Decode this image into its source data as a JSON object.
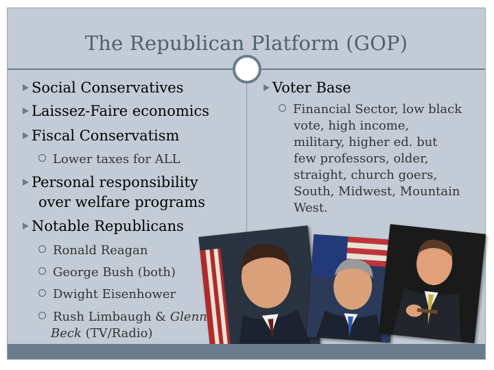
{
  "title": "The Republican Platform (GOP)",
  "left": {
    "social": "Social Conservatives",
    "laissez": "Laissez-Faire economics",
    "fiscal": "Fiscal Conservatism",
    "fiscal_sub": "Lower taxes for ALL",
    "personal_line1": "Personal responsibility",
    "personal_line2": "over welfare programs",
    "notable": "Notable Republicans",
    "reagan": "Ronald Reagan",
    "bush": "George Bush (both)",
    "eisenhower": "Dwight Eisenhower",
    "limbaugh_pre": "Rush Limbaugh & ",
    "limbaugh_glenn": "Glenn",
    "limbaugh_beck": "Beck",
    "limbaugh_post": " (TV/Radio)"
  },
  "right": {
    "voter_base": "Voter Base",
    "voter_lines": [
      "Financial Sector, low black",
      "vote, high income,",
      "military, higher ed. but",
      "few professors, older,",
      "straight, church goers,",
      "South, Midwest, Mountain",
      "West."
    ]
  },
  "icons": [
    "bullet-triangle-icon",
    "bullet-ring-icon"
  ],
  "colors": {
    "background": "#c3ccd6",
    "accent": "#6a7b8c",
    "title": "#4e5f70"
  }
}
